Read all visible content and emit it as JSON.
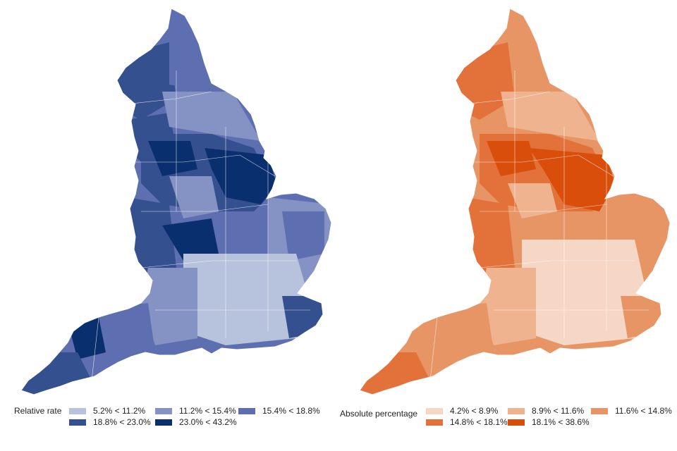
{
  "maps": [
    {
      "id": "relative",
      "legend_title": "Relative rate",
      "legend": [
        {
          "label": "5.2% < 11.2%",
          "color": "#b7c3dd"
        },
        {
          "label": "11.2% < 15.4%",
          "color": "#8593c4"
        },
        {
          "label": "15.4% < 18.8%",
          "color": "#5e6fb1"
        },
        {
          "label": "18.8% < 23.0%",
          "color": "#35508e"
        },
        {
          "label": "23.0% < 43.2%",
          "color": "#0a2f6e"
        }
      ]
    },
    {
      "id": "absolute",
      "legend_title": "Absolute percentage",
      "legend": [
        {
          "label": "4.2% < 8.9%",
          "color": "#f6d6c4"
        },
        {
          "label": "8.9% < 11.6%",
          "color": "#efb48f"
        },
        {
          "label": "11.6% < 14.8%",
          "color": "#e89566"
        },
        {
          "label": "14.8% < 18.1%",
          "color": "#e2713a"
        },
        {
          "label": "18.1% < 38.6%",
          "color": "#d94e0b"
        }
      ]
    }
  ]
}
